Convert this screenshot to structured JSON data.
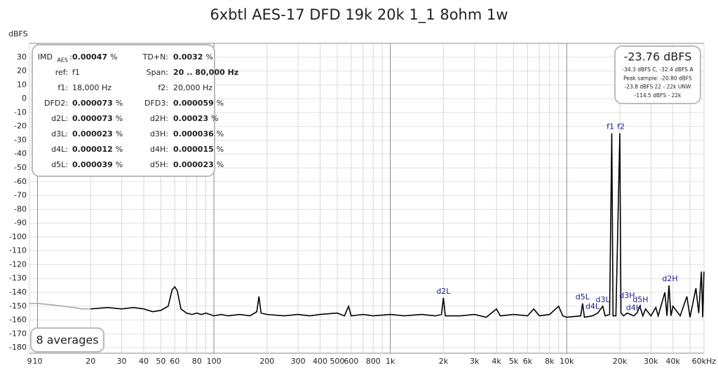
{
  "chart_data": {
    "type": "line",
    "title": "6xbtl AES-17 DFD 19k 20k 1_1 8ohm 1w",
    "y_label": "dBFS",
    "xscale": "log",
    "grid": true,
    "xlim": [
      9,
      60000
    ],
    "ylim": [
      -184,
      40
    ],
    "yticks": [
      30,
      20,
      10,
      0,
      -10,
      -20,
      -30,
      -40,
      -50,
      -60,
      -70,
      -80,
      -90,
      -100,
      -110,
      -120,
      -130,
      -140,
      -150,
      -160,
      -170,
      -180
    ],
    "xticks": [
      9,
      10,
      20,
      30,
      40,
      50,
      60,
      80,
      100,
      200,
      300,
      400,
      500,
      600,
      800,
      {
        "value": 1000,
        "label": "1k"
      },
      {
        "value": 2000,
        "label": "2k"
      },
      {
        "value": 3000,
        "label": "3k"
      },
      {
        "value": 4000,
        "label": "4k"
      },
      {
        "value": 5000,
        "label": "5k"
      },
      {
        "value": 6000,
        "label": "6k"
      },
      {
        "value": 8000,
        "label": "8k"
      },
      {
        "value": 10000,
        "label": "10k"
      },
      {
        "value": 20000,
        "label": "20k"
      },
      {
        "value": 30000,
        "label": "30k"
      },
      {
        "value": 40000,
        "label": "40k"
      },
      {
        "value": 60000,
        "label": "60kHz"
      }
    ],
    "xminor_ticks": [
      70,
      90,
      700,
      900,
      7000,
      9000,
      50000
    ],
    "series": [
      {
        "color": "#aaaaaa",
        "x": [
          9,
          10,
          12,
          14,
          16,
          18,
          20
        ],
        "values": [
          -148,
          -148,
          -149,
          -150,
          -151,
          -152,
          -152
        ]
      },
      {
        "color": "#000000",
        "x": [
          20,
          25,
          30,
          35,
          40,
          45,
          50,
          55,
          58,
          60,
          62,
          65,
          70,
          75,
          80,
          85,
          90,
          100,
          110,
          120,
          140,
          160,
          175,
          180,
          185,
          200,
          250,
          300,
          350,
          400,
          500,
          550,
          580,
          600,
          700,
          800,
          1000,
          1200,
          1500,
          1800,
          1950,
          2000,
          2050,
          2500,
          3000,
          3500,
          4000,
          4200,
          5000,
          6000,
          6500,
          7000,
          8000,
          9000,
          9500,
          10000,
          12000,
          12300,
          12600,
          14000,
          15000,
          16000,
          16500,
          17500,
          18000,
          18300,
          19000,
          20000,
          20300,
          21000,
          22000,
          23000,
          24000,
          25000,
          26000,
          27000,
          28000,
          30000,
          32000,
          33000,
          36000,
          37000,
          38000,
          39000,
          40000,
          44000,
          48000,
          50000,
          54000,
          56000,
          58000,
          59000,
          60000
        ],
        "values": [
          -152,
          -151,
          -152,
          -151,
          -152,
          -154,
          -153,
          -150,
          -138,
          -136,
          -139,
          -152,
          -155,
          -156,
          -155,
          -156,
          -155,
          -157,
          -156,
          -157,
          -156,
          -157,
          -154,
          -143,
          -155,
          -156,
          -157,
          -156,
          -157,
          -156,
          -155,
          -157,
          -150,
          -157,
          -156,
          -157,
          -156,
          -157,
          -156,
          -157,
          -156,
          -144,
          -157,
          -157,
          -156,
          -158,
          -152,
          -157,
          -156,
          -157,
          -152,
          -157,
          -156,
          -150,
          -157,
          -158,
          -157,
          -148,
          -158,
          -157,
          -155,
          -150,
          -157,
          -156,
          -25,
          -157,
          -157,
          -25,
          -155,
          -157,
          -155,
          -156,
          -157,
          -155,
          -150,
          -157,
          -152,
          -157,
          -151,
          -157,
          -140,
          -157,
          -135,
          -157,
          -150,
          -157,
          -143,
          -158,
          -137,
          -155,
          -125,
          -158,
          -125
        ]
      }
    ],
    "annotations": [
      {
        "text": "d2L",
        "x": 2000,
        "y": -144
      },
      {
        "text": "f1",
        "x": 17700,
        "y": -25
      },
      {
        "text": "f2",
        "x": 20300,
        "y": -25
      },
      {
        "text": "d5L",
        "x": 12300,
        "y": -148
      },
      {
        "text": "d4L",
        "x": 14000,
        "y": -155
      },
      {
        "text": "d3L",
        "x": 16000,
        "y": -150
      },
      {
        "text": "d3H",
        "x": 22000,
        "y": -147
      },
      {
        "text": "d4H",
        "x": 24000,
        "y": -156
      },
      {
        "text": "d5H",
        "x": 26200,
        "y": -150
      },
      {
        "text": "d2H",
        "x": 38500,
        "y": -135
      }
    ],
    "info": {
      "rows": [
        [
          {
            "label": "IMD",
            "sub": "AES",
            "value": "0.00047",
            "unit": "%",
            "bold": true
          },
          {
            "label": "TD+N:",
            "value": "0.0032",
            "unit": "%",
            "bold": true
          }
        ],
        [
          {
            "label": "ref:",
            "value": "f1",
            "bold": false
          },
          {
            "label": "Span:",
            "value": "20 .. 80,000 Hz",
            "bold": true
          }
        ],
        [
          {
            "label": "f1:",
            "value": "18,000 Hz",
            "bold": false
          },
          {
            "label": "f2:",
            "value": "20,000 Hz",
            "bold": false
          }
        ],
        [
          {
            "label": "DFD2:",
            "value": "0.000073",
            "unit": "%",
            "bold": true
          },
          {
            "label": "DFD3:",
            "value": "0.000059",
            "unit": "%",
            "bold": true
          }
        ],
        [
          {
            "label": "d2L:",
            "value": "0.000073",
            "unit": "%",
            "bold": true
          },
          {
            "label": "d2H:",
            "value": "0.00023",
            "unit": "%",
            "bold": true
          }
        ],
        [
          {
            "label": "d3L:",
            "value": "0.000023",
            "unit": "%",
            "bold": true
          },
          {
            "label": "d3H:",
            "value": "0.000036",
            "unit": "%",
            "bold": true
          }
        ],
        [
          {
            "label": "d4L:",
            "value": "0.000012",
            "unit": "%",
            "bold": true
          },
          {
            "label": "d4H:",
            "value": "0.000015",
            "unit": "%",
            "bold": true
          }
        ],
        [
          {
            "label": "d5L:",
            "value": "0.000039",
            "unit": "%",
            "bold": true
          },
          {
            "label": "d5H:",
            "value": "0.000023",
            "unit": "%",
            "bold": true
          }
        ]
      ]
    },
    "level": {
      "main": "-23.76 dBFS",
      "lines": [
        "-34.3 dBFS C, -32.4 dBFS A",
        "Peak sample: -20.80 dBFS",
        "-23.8 dBFS 22 - 22k UNW",
        "-114.5 dBFS - 22k"
      ]
    },
    "averages": "8 averages"
  }
}
